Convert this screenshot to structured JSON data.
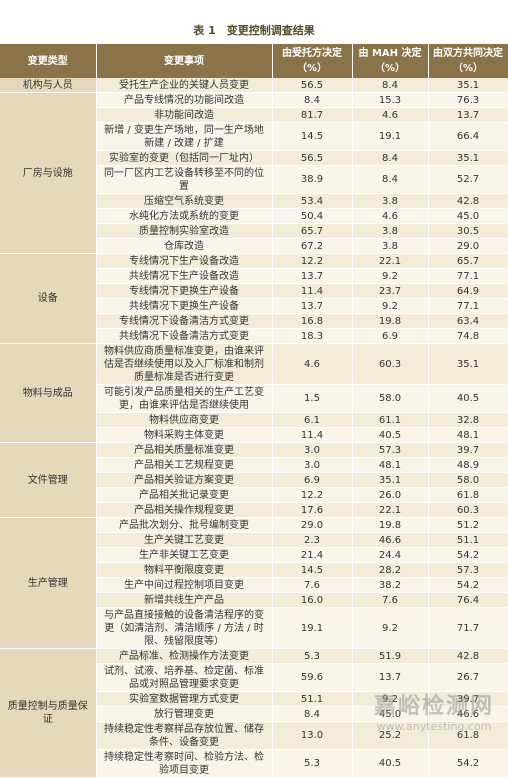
{
  "title": "表 1　变更控制调查结果",
  "header": [
    "变更类型",
    "变更事项",
    "由受托方决定（%）",
    "由 MAH 决定（%）",
    "由双方共同决定（%）"
  ],
  "groups": [
    {
      "type": "机构与人员",
      "items": [
        {
          "item": "受托生产企业的关键人员变更",
          "values": [
            "56.5",
            "8.4",
            "35.1"
          ]
        }
      ]
    },
    {
      "type": "厂房与设施",
      "items": [
        {
          "item": "产品专线情况的功能间改造",
          "values": [
            "8.4",
            "15.3",
            "76.3"
          ]
        },
        {
          "item": "非功能间改造",
          "values": [
            "81.7",
            "4.6",
            "13.7"
          ]
        },
        {
          "item": "新增 / 变更生产场地，同一生产场地新建 / 改建 / 扩建",
          "values": [
            "14.5",
            "19.1",
            "66.4"
          ]
        },
        {
          "item": "实验室的变更（包括同一厂址内）",
          "values": [
            "56.5",
            "8.4",
            "35.1"
          ]
        },
        {
          "item": "同一厂区内工艺设备转移至不同的位置",
          "values": [
            "38.9",
            "8.4",
            "52.7"
          ]
        },
        {
          "item": "压缩空气系统变更",
          "values": [
            "53.4",
            "3.8",
            "42.8"
          ]
        },
        {
          "item": "水纯化方法或系统的变更",
          "values": [
            "50.4",
            "4.6",
            "45.0"
          ]
        },
        {
          "item": "质量控制实验室改造",
          "values": [
            "65.7",
            "3.8",
            "30.5"
          ]
        },
        {
          "item": "仓库改造",
          "values": [
            "67.2",
            "3.8",
            "29.0"
          ]
        }
      ]
    },
    {
      "type": "设备",
      "items": [
        {
          "item": "专线情况下生产设备改造",
          "values": [
            "12.2",
            "22.1",
            "65.7"
          ]
        },
        {
          "item": "共线情况下生产设备改造",
          "values": [
            "13.7",
            "9.2",
            "77.1"
          ]
        },
        {
          "item": "专线情况下更换生产设备",
          "values": [
            "11.4",
            "23.7",
            "64.9"
          ]
        },
        {
          "item": "共线情况下更换生产设备",
          "values": [
            "13.7",
            "9.2",
            "77.1"
          ]
        },
        {
          "item": "专线情况下设备清洁方式变更",
          "values": [
            "16.8",
            "19.8",
            "63.4"
          ]
        },
        {
          "item": "共线情况下设备清洁方式变更",
          "values": [
            "18.3",
            "6.9",
            "74.8"
          ]
        }
      ]
    },
    {
      "type": "物料与成品",
      "items": [
        {
          "item": "物料供应商质量标准变更，由谁来评估是否继续使用以及入厂标准和制剂质量标准是否进行变更",
          "values": [
            "4.6",
            "60.3",
            "35.1"
          ]
        },
        {
          "item": "可能引发产品质量相关的生产工艺变更，由谁来评估是否继续使用",
          "values": [
            "1.5",
            "58.0",
            "40.5"
          ]
        },
        {
          "item": "物料供应商变更",
          "values": [
            "6.1",
            "61.1",
            "32.8"
          ]
        },
        {
          "item": "物料采购主体变更",
          "values": [
            "11.4",
            "40.5",
            "48.1"
          ]
        }
      ]
    },
    {
      "type": "文件管理",
      "items": [
        {
          "item": "产品相关质量标准变更",
          "values": [
            "3.0",
            "57.3",
            "39.7"
          ]
        },
        {
          "item": "产品相关工艺规程变更",
          "values": [
            "3.0",
            "48.1",
            "48.9"
          ]
        },
        {
          "item": "产品相关验证方案变更",
          "values": [
            "6.9",
            "35.1",
            "58.0"
          ]
        },
        {
          "item": "产品相关批记录变更",
          "values": [
            "12.2",
            "26.0",
            "61.8"
          ]
        },
        {
          "item": "产品相关操作规程变更",
          "values": [
            "17.6",
            "22.1",
            "60.3"
          ]
        }
      ]
    },
    {
      "type": "生产管理",
      "items": [
        {
          "item": "产品批次划分、批号编制变更",
          "values": [
            "29.0",
            "19.8",
            "51.2"
          ]
        },
        {
          "item": "生产关键工艺变更",
          "values": [
            "2.3",
            "46.6",
            "51.1"
          ]
        },
        {
          "item": "生产非关键工艺变更",
          "values": [
            "21.4",
            "24.4",
            "54.2"
          ]
        },
        {
          "item": "物料平衡限度变更",
          "values": [
            "14.5",
            "28.2",
            "57.3"
          ]
        },
        {
          "item": "生产中间过程控制项目变更",
          "values": [
            "7.6",
            "38.2",
            "54.2"
          ]
        },
        {
          "item": "新增共线生产产品",
          "values": [
            "16.0",
            "7.6",
            "76.4"
          ]
        },
        {
          "item": "与产品直接接触的设备清洁程序的变更（如清洁剂、清洁顺序 / 方法 / 时限、残留限度等）",
          "values": [
            "19.1",
            "9.2",
            "71.7"
          ]
        }
      ]
    },
    {
      "type": "质量控制与质量保证",
      "items": [
        {
          "item": "产品标准、检测操作方法变更",
          "values": [
            "5.3",
            "51.9",
            "42.8"
          ]
        },
        {
          "item": "试剂、试液、培养基、检定菌、标准品或对照品管理要求变更",
          "values": [
            "59.6",
            "13.7",
            "26.7"
          ]
        },
        {
          "item": "实验室数据管理方式变更",
          "values": [
            "51.1",
            "9.2",
            "39.7"
          ]
        },
        {
          "item": "放行管理变更",
          "values": [
            "8.4",
            "45.0",
            "46.6"
          ]
        },
        {
          "item": "持续稳定性考察样品存放位置、储存条件、设备变更",
          "values": [
            "13.0",
            "25.2",
            "61.8"
          ]
        },
        {
          "item": "持续稳定性考察时间、检验方法、检验项目变更",
          "values": [
            "5.3",
            "40.5",
            "54.2"
          ]
        }
      ]
    }
  ],
  "watermark": {
    "name": "嘉峪检测网",
    "url": "www.anytesting.com"
  }
}
